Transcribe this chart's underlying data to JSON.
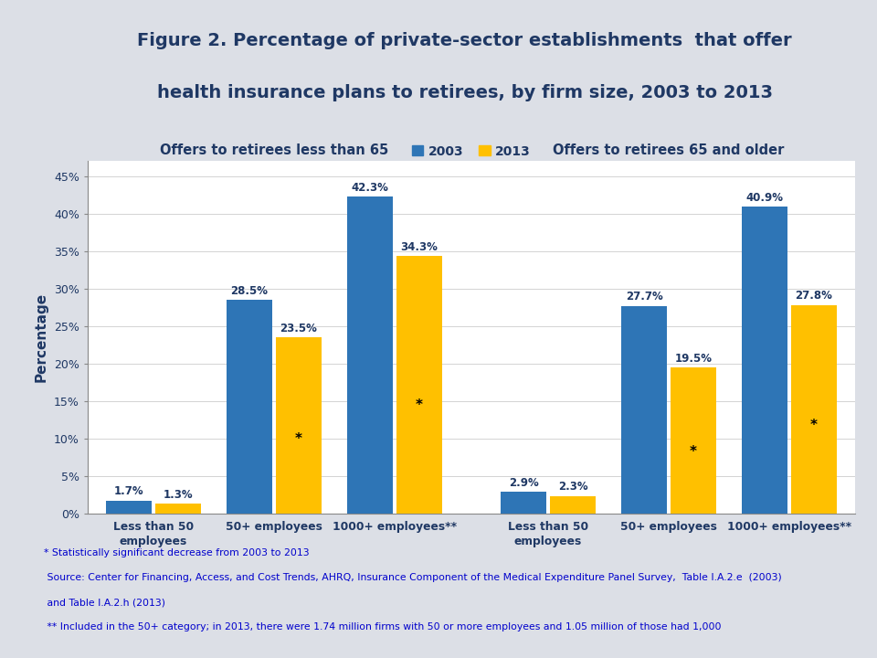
{
  "title_line1": "Figure 2. Percentage of private-sector establishments  that offer",
  "title_line2": "health insurance plans to retirees, by firm size, 2003 to 2013",
  "subtitle_left": "Offers to retirees less than 65",
  "subtitle_right": "Offers to retirees 65 and older",
  "ylabel": "Percentage",
  "legend_labels": [
    "2003",
    "2013"
  ],
  "color_2003": "#2E75B6",
  "color_2013": "#FFC000",
  "group_labels": [
    "Less than 50\nemployees",
    "50+ employees",
    "1000+ employees**",
    "Less than 50\nemployees",
    "50+ employees",
    "1000+ employees**"
  ],
  "values_2003": [
    1.7,
    28.5,
    42.3,
    2.9,
    27.7,
    40.9
  ],
  "values_2013": [
    1.3,
    23.5,
    34.3,
    2.3,
    19.5,
    27.8
  ],
  "star_2013": [
    false,
    true,
    true,
    false,
    true,
    true
  ],
  "ylim": [
    0,
    47
  ],
  "yticks": [
    0,
    5,
    10,
    15,
    20,
    25,
    30,
    35,
    40,
    45
  ],
  "ytick_labels": [
    "0%",
    "5%",
    "10%",
    "15%",
    "20%",
    "25%",
    "30%",
    "35%",
    "40%",
    "45%"
  ],
  "header_bg_top": "#D0D4DC",
  "header_bg_bottom": "#E8EBF2",
  "plot_bg": "#FFFFFF",
  "footer_bg": "#FFFFFF",
  "fig_bg": "#DCDFE6",
  "footer_notes": [
    "* Statistically significant decrease from 2003 to 2013",
    " Source: Center for Financing, Access, and Cost Trends, AHRQ, Insurance Component of the Medical Expenditure Panel Survey,  Table I.A.2.e  (2003)",
    " and Table I.A.2.h (2013)",
    " ** Included in the 50+ category; in 2013, there were 1.74 million firms with 50 or more employees and 1.05 million of those had 1,000"
  ],
  "title_color": "#1F3864",
  "axis_color": "#1F3864",
  "positions": [
    0,
    1.1,
    2.2,
    3.6,
    4.7,
    5.8
  ]
}
